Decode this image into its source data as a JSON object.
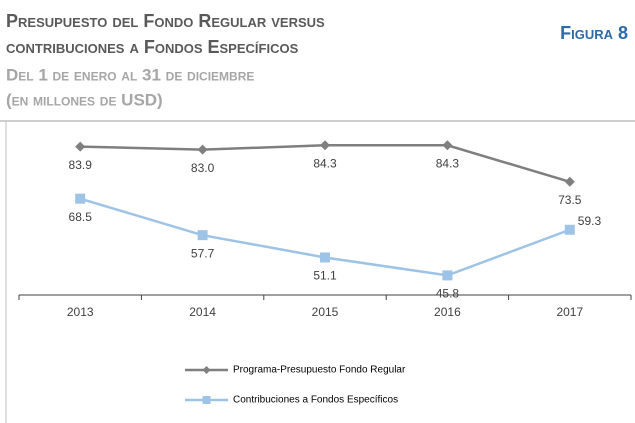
{
  "chart_data": {
    "type": "line",
    "title": [
      "Presupuesto del Fondo Regular versus",
      "contribuciones a Fondos Específicos"
    ],
    "subtitle": [
      "Del 1 de enero al 31 de diciembre",
      "(en millones de USD)"
    ],
    "figure_label": "Figura 8",
    "categories": [
      "2013",
      "2014",
      "2015",
      "2016",
      "2017"
    ],
    "series": [
      {
        "name": "Programa-Presupuesto Fondo Regular",
        "color": "#7f7f7f",
        "marker": "diamond",
        "values": [
          83.9,
          83.0,
          84.3,
          84.3,
          73.5
        ],
        "value_labels": [
          "83.9",
          "83.0",
          "84.3",
          "84.3",
          "73.5"
        ]
      },
      {
        "name": "Contribuciones a Fondos Específicos",
        "color": "#9dc3e6",
        "marker": "square",
        "values": [
          68.5,
          57.7,
          51.1,
          45.8,
          59.3
        ],
        "value_labels": [
          "68.5",
          "57.7",
          "51.1",
          "45.8",
          "59.3"
        ]
      }
    ],
    "ylim": [
      40,
      90
    ]
  }
}
